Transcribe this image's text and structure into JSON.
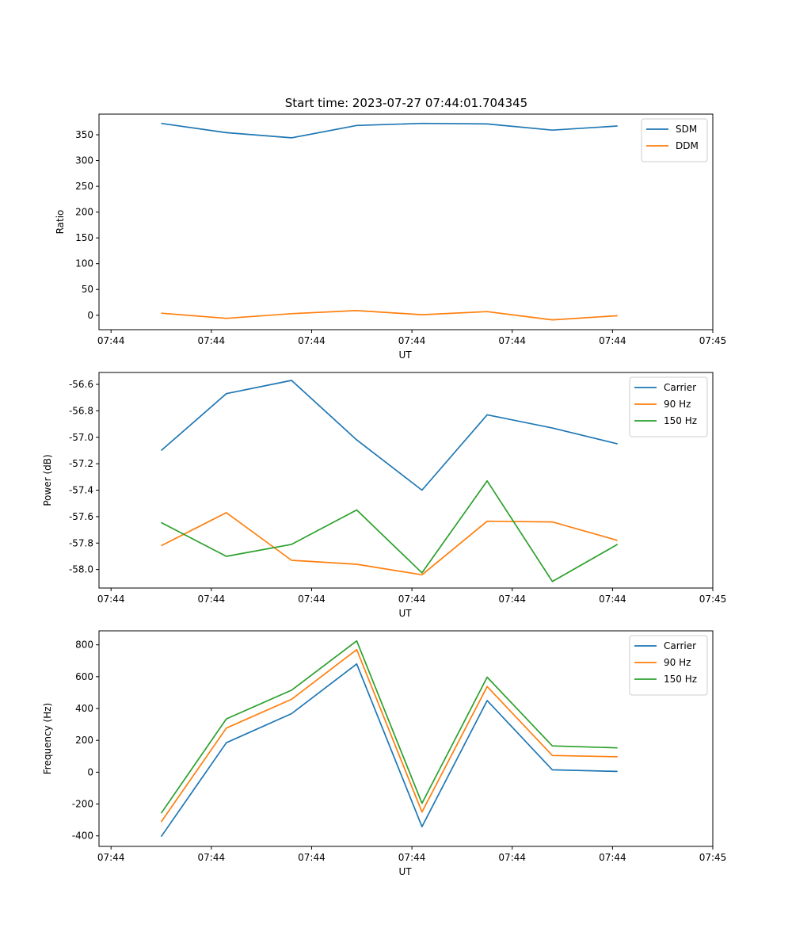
{
  "figure_title": "Start time: 2023-07-27 07:44:01.704345",
  "chart_data": [
    {
      "type": "line",
      "title": "Start time: 2023-07-27 07:44:01.704345",
      "xlabel": "UT",
      "ylabel": "Ratio",
      "x_ticks": [
        "07:44",
        "07:44",
        "07:44",
        "07:44",
        "07:44",
        "07:44",
        "07:45"
      ],
      "x_tick_values": [
        0,
        1,
        2,
        3,
        4,
        5,
        6
      ],
      "xlim": [
        -0.12,
        6.0
      ],
      "x": [
        0.5,
        1.15,
        1.8,
        2.45,
        3.1,
        3.75,
        4.4,
        5.05
      ],
      "y_ticks": [
        0,
        50,
        100,
        150,
        200,
        250,
        300,
        350
      ],
      "ylim": [
        -28,
        390
      ],
      "legend_position": "top-right",
      "series": [
        {
          "name": "SDM",
          "color": "#1f77b4",
          "values": [
            372,
            354,
            344,
            368,
            372,
            371,
            359,
            367
          ]
        },
        {
          "name": "DDM",
          "color": "#ff7f0e",
          "values": [
            4,
            -6,
            3,
            9,
            1,
            7,
            -9,
            -1
          ]
        }
      ]
    },
    {
      "type": "line",
      "title": "",
      "xlabel": "UT",
      "ylabel": "Power (dB)",
      "x_ticks": [
        "07:44",
        "07:44",
        "07:44",
        "07:44",
        "07:44",
        "07:44",
        "07:45"
      ],
      "x_tick_values": [
        0,
        1,
        2,
        3,
        4,
        5,
        6
      ],
      "xlim": [
        -0.12,
        6.0
      ],
      "x": [
        0.5,
        1.15,
        1.8,
        2.45,
        3.1,
        3.75,
        4.4,
        5.05
      ],
      "y_ticks": [
        "-58.0",
        "-57.8",
        "-57.6",
        "-57.4",
        "-57.2",
        "-57.0",
        "-56.8",
        "-56.6"
      ],
      "y_tick_values": [
        -58.0,
        -57.8,
        -57.6,
        -57.4,
        -57.2,
        -57.0,
        -56.8,
        -56.6
      ],
      "ylim": [
        -58.14,
        -56.51
      ],
      "legend_position": "top-right",
      "series": [
        {
          "name": "Carrier",
          "color": "#1f77b4",
          "values": [
            -57.1,
            -56.67,
            -56.57,
            -57.02,
            -57.4,
            -56.83,
            -56.93,
            -57.05
          ]
        },
        {
          "name": "90 Hz",
          "color": "#ff7f0e",
          "values": [
            -57.82,
            -57.57,
            -57.93,
            -57.96,
            -58.04,
            -57.635,
            -57.64,
            -57.78
          ]
        },
        {
          "name": "150 Hz",
          "color": "#2ca02c",
          "values": [
            -57.645,
            -57.9,
            -57.81,
            -57.55,
            -58.025,
            -57.33,
            -58.09,
            -57.81
          ]
        }
      ]
    },
    {
      "type": "line",
      "title": "",
      "xlabel": "UT",
      "ylabel": "Frequency (Hz)",
      "x_ticks": [
        "07:44",
        "07:44",
        "07:44",
        "07:44",
        "07:44",
        "07:44",
        "07:45"
      ],
      "x_tick_values": [
        0,
        1,
        2,
        3,
        4,
        5,
        6
      ],
      "xlim": [
        -0.12,
        6.0
      ],
      "x": [
        0.5,
        1.15,
        1.8,
        2.45,
        3.1,
        3.75,
        4.4,
        5.05
      ],
      "y_ticks": [
        -400,
        -200,
        0,
        200,
        400,
        600,
        800
      ],
      "ylim": [
        -466,
        888
      ],
      "legend_position": "top-right",
      "series": [
        {
          "name": "Carrier",
          "color": "#1f77b4",
          "values": [
            -405,
            185,
            368,
            680,
            -342,
            450,
            15,
            5
          ]
        },
        {
          "name": "90 Hz",
          "color": "#ff7f0e",
          "values": [
            -312,
            277,
            458,
            770,
            -250,
            538,
            105,
            97
          ]
        },
        {
          "name": "150 Hz",
          "color": "#2ca02c",
          "values": [
            -258,
            335,
            515,
            825,
            -195,
            597,
            165,
            153
          ]
        }
      ]
    }
  ]
}
